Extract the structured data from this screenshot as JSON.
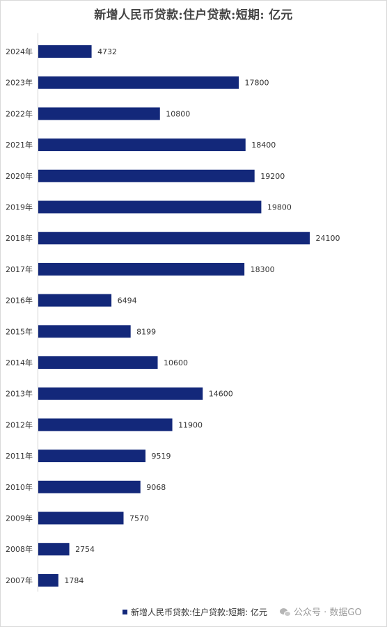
{
  "chart_data": {
    "type": "bar",
    "orientation": "horizontal",
    "title": "新增人民币贷款:住户贷款:短期: 亿元",
    "categories": [
      "2024年",
      "2023年",
      "2022年",
      "2021年",
      "2020年",
      "2019年",
      "2018年",
      "2017年",
      "2016年",
      "2015年",
      "2014年",
      "2013年",
      "2012年",
      "2011年",
      "2010年",
      "2009年",
      "2008年",
      "2007年"
    ],
    "series": [
      {
        "name": "新增人民币贷款:住户贷款:短期: 亿元",
        "values": [
          4732,
          17800,
          10800,
          18400,
          19200,
          19800,
          24100,
          18300,
          6494,
          8199,
          10600,
          14600,
          11900,
          9519,
          9068,
          7570,
          2754,
          1784
        ],
        "labels": [
          "4732",
          "17800",
          "10800",
          "18400",
          "19200",
          "19800",
          "24100",
          "18300",
          "6494",
          "8199",
          "10600",
          "14600",
          "11900",
          "9519",
          "9068",
          "7570",
          "2754",
          "1784"
        ]
      }
    ],
    "xlim": [
      0,
      24100
    ],
    "grid": false,
    "data_labels": true,
    "legend_position": "bottom",
    "bar_color": "#13287a"
  },
  "watermark": {
    "icon": "wechat-icon",
    "text": "公众号 · 数据GO"
  }
}
